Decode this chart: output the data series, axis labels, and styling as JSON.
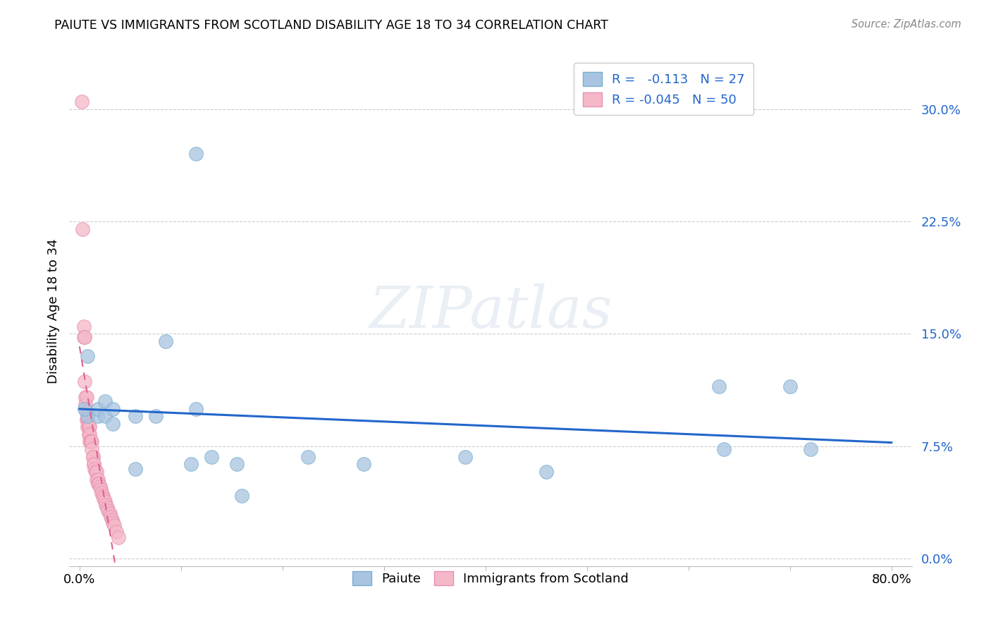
{
  "title": "PAIUTE VS IMMIGRANTS FROM SCOTLAND DISABILITY AGE 18 TO 34 CORRELATION CHART",
  "source": "Source: ZipAtlas.com",
  "ylabel": "Disability Age 18 to 34",
  "xlim": [
    -0.01,
    0.82
  ],
  "ylim": [
    -0.005,
    0.335
  ],
  "yticks": [
    0.0,
    0.075,
    0.15,
    0.225,
    0.3
  ],
  "ytick_labels": [
    "0.0%",
    "7.5%",
    "15.0%",
    "22.5%",
    "30.0%"
  ],
  "xticks": [
    0.0,
    0.1,
    0.2,
    0.3,
    0.4,
    0.5,
    0.6,
    0.7,
    0.8
  ],
  "xtick_labels": [
    "0.0%",
    "",
    "",
    "",
    "",
    "",
    "",
    "",
    "80.0%"
  ],
  "legend_paiute_R": "-0.113",
  "legend_paiute_N": "27",
  "legend_scotland_R": "-0.045",
  "legend_scotland_N": "50",
  "paiute_color": "#a8c4e0",
  "scotland_color": "#f4b8c8",
  "paiute_edge_color": "#7aaed0",
  "scotland_edge_color": "#e890b0",
  "paiute_line_color": "#2266cc",
  "scotland_line_color": "#e06090",
  "grid_color": "#cccccc",
  "background_color": "#ffffff",
  "paiute_x": [
    0.115,
    0.008,
    0.008,
    0.018,
    0.018,
    0.025,
    0.025,
    0.033,
    0.033,
    0.055,
    0.055,
    0.075,
    0.085,
    0.115,
    0.11,
    0.13,
    0.155,
    0.16,
    0.225,
    0.28,
    0.38,
    0.46,
    0.63,
    0.635,
    0.7,
    0.72,
    0.005
  ],
  "paiute_y": [
    0.27,
    0.135,
    0.095,
    0.095,
    0.1,
    0.105,
    0.095,
    0.09,
    0.1,
    0.095,
    0.06,
    0.095,
    0.145,
    0.1,
    0.063,
    0.068,
    0.063,
    0.042,
    0.068,
    0.063,
    0.068,
    0.058,
    0.115,
    0.073,
    0.115,
    0.073,
    0.1
  ],
  "scotland_x": [
    0.002,
    0.003,
    0.004,
    0.004,
    0.005,
    0.005,
    0.006,
    0.006,
    0.007,
    0.007,
    0.007,
    0.008,
    0.008,
    0.009,
    0.009,
    0.009,
    0.01,
    0.01,
    0.01,
    0.011,
    0.011,
    0.012,
    0.012,
    0.013,
    0.013,
    0.014,
    0.014,
    0.015,
    0.016,
    0.017,
    0.017,
    0.018,
    0.018,
    0.019,
    0.02,
    0.021,
    0.022,
    0.023,
    0.024,
    0.025,
    0.026,
    0.027,
    0.028,
    0.03,
    0.031,
    0.032,
    0.033,
    0.034,
    0.036,
    0.038
  ],
  "scotland_y": [
    0.305,
    0.22,
    0.155,
    0.148,
    0.148,
    0.118,
    0.108,
    0.103,
    0.108,
    0.098,
    0.093,
    0.093,
    0.088,
    0.088,
    0.083,
    0.088,
    0.088,
    0.083,
    0.078,
    0.078,
    0.078,
    0.078,
    0.073,
    0.068,
    0.068,
    0.063,
    0.063,
    0.06,
    0.058,
    0.058,
    0.053,
    0.053,
    0.05,
    0.05,
    0.048,
    0.046,
    0.044,
    0.042,
    0.04,
    0.038,
    0.036,
    0.034,
    0.032,
    0.03,
    0.028,
    0.026,
    0.024,
    0.022,
    0.018,
    0.014
  ],
  "watermark_text": "ZIPatlas",
  "legend_box_color": "#ffffff",
  "legend_edge_color": "#cccccc"
}
